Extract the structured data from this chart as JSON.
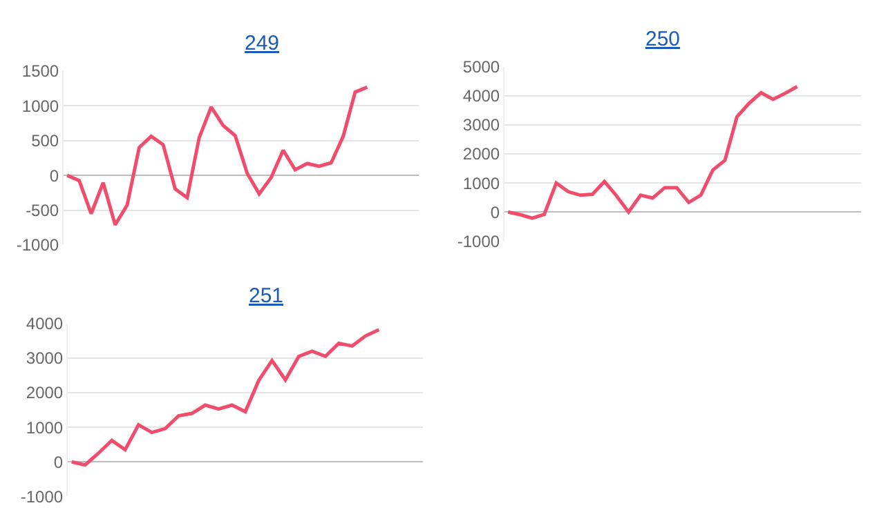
{
  "chart_data": [
    {
      "type": "line",
      "title": "249",
      "categories": [
        null,
        null,
        null,
        null,
        null,
        null,
        null,
        null,
        null,
        null,
        null,
        null,
        null,
        null,
        null,
        null,
        null,
        null,
        null,
        null,
        null,
        null,
        null,
        null,
        null,
        null,
        null,
        null,
        null,
        null
      ],
      "series": [
        {
          "color": "#f04c6c",
          "values": [
            0,
            -75,
            -550,
            -105,
            -710,
            -425,
            400,
            560,
            440,
            -195,
            -320,
            540,
            980,
            715,
            570,
            30,
            -265,
            -30,
            360,
            80,
            170,
            130,
            180,
            560,
            1195,
            1265,
            null,
            null,
            null,
            null
          ]
        }
      ],
      "ylim": [
        -1000,
        1500
      ],
      "yticks": [
        -1000,
        -500,
        0,
        500,
        1000,
        1500
      ],
      "grid": "y",
      "marker": "none",
      "line_style": "solid"
    },
    {
      "type": "line",
      "title": "250",
      "categories": [
        null,
        null,
        null,
        null,
        null,
        null,
        null,
        null,
        null,
        null,
        null,
        null,
        null,
        null,
        null,
        null,
        null,
        null,
        null,
        null,
        null,
        null,
        null,
        null,
        null,
        null,
        null,
        null,
        null,
        null
      ],
      "series": [
        {
          "color": "#f04c6c",
          "values": [
            0,
            -90,
            -210,
            -80,
            1000,
            700,
            580,
            610,
            1050,
            560,
            0,
            580,
            480,
            840,
            840,
            330,
            580,
            1450,
            1780,
            3280,
            3740,
            4110,
            3880,
            4090,
            4320,
            null,
            null,
            null,
            null,
            null
          ]
        }
      ],
      "ylim": [
        -1000,
        5000
      ],
      "yticks": [
        -1000,
        0,
        1000,
        2000,
        3000,
        4000,
        5000
      ],
      "grid": "y",
      "marker": "none",
      "line_style": "solid"
    },
    {
      "type": "line",
      "title": "251",
      "categories": [
        null,
        null,
        null,
        null,
        null,
        null,
        null,
        null,
        null,
        null,
        null,
        null,
        null,
        null,
        null,
        null,
        null,
        null,
        null,
        null,
        null,
        null,
        null,
        null,
        null,
        null,
        null
      ],
      "series": [
        {
          "color": "#f04c6c",
          "values": [
            0,
            -90,
            250,
            620,
            350,
            1070,
            850,
            960,
            1330,
            1400,
            1640,
            1530,
            1640,
            1450,
            2350,
            2930,
            2370,
            3050,
            3200,
            3050,
            3430,
            3350,
            3640,
            3820,
            null,
            null,
            null
          ]
        }
      ],
      "ylim": [
        -1000,
        4000
      ],
      "yticks": [
        -1000,
        0,
        1000,
        2000,
        3000,
        4000
      ],
      "grid": "y",
      "marker": "none",
      "line_style": "solid"
    }
  ]
}
